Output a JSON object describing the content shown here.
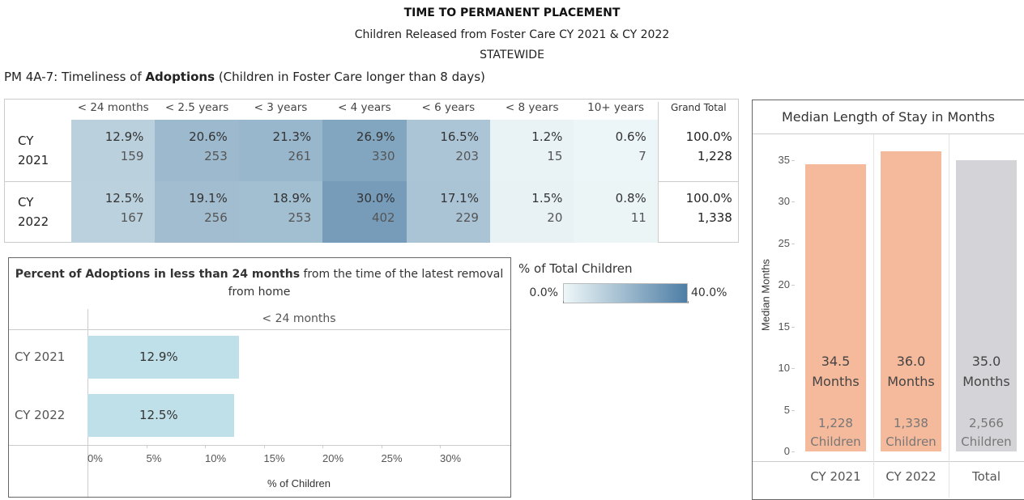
{
  "header": {
    "title": "TIME TO PERMANENT PLACEMENT",
    "subtitle": "Children Released from Foster Care CY 2021 & CY 2022",
    "region": "STATEWIDE"
  },
  "section_title": [
    "PM 4A-7: Timeliness of ",
    "Adoptions",
    " (Children in Foster Care longer than 8 days)"
  ],
  "chart_data": [
    {
      "type": "heatmap",
      "columns": [
        "< 24 months",
        "< 2.5 years",
        "< 3 years",
        "< 4 years",
        "< 6 years",
        "< 8 years",
        "10+ years"
      ],
      "rows": [
        "CY 2021",
        "CY 2022"
      ],
      "values": [
        [
          12.9,
          20.6,
          21.3,
          26.9,
          16.5,
          1.2,
          0.6
        ],
        [
          12.5,
          19.1,
          18.9,
          30.0,
          17.1,
          1.5,
          0.8
        ]
      ],
      "value_labels": [
        [
          "12.9%",
          "20.6%",
          "21.3%",
          "26.9%",
          "16.5%",
          "1.2%",
          "0.6%"
        ],
        [
          "12.5%",
          "19.1%",
          "18.9%",
          "30.0%",
          "17.1%",
          "1.5%",
          "0.8%"
        ]
      ],
      "counts": [
        [
          159,
          253,
          261,
          330,
          203,
          15,
          7
        ],
        [
          167,
          256,
          253,
          402,
          229,
          20,
          11
        ]
      ],
      "total_header": "Grand Total",
      "total_labels": [
        "100.0%",
        "100.0%"
      ],
      "total_counts": [
        "1,228",
        "1,338"
      ],
      "legend": {
        "title": "% of Total Children",
        "lim": [
          0,
          40
        ],
        "ticks": [
          {
            "value": 0,
            "label": "0.0%"
          },
          {
            "value": 40,
            "label": "40.0%"
          }
        ],
        "colors": [
          "#eef7f8",
          "#4e7ea5"
        ]
      }
    },
    {
      "type": "hbar",
      "title": [
        "Percent of Adoptions in less than 24 months",
        " from the time of the latest removal from home"
      ],
      "column_header": "< 24 months",
      "categories": [
        "CY 2021",
        "CY 2022"
      ],
      "values": [
        12.9,
        12.5
      ],
      "value_labels": [
        "12.9%",
        "12.5%"
      ],
      "color": "#bfe0e8",
      "xlim": [
        0,
        36
      ],
      "xticks": [
        {
          "value": 0,
          "label": "0%"
        },
        {
          "value": 5,
          "label": "5%"
        },
        {
          "value": 10,
          "label": "10%"
        },
        {
          "value": 15,
          "label": "15%"
        },
        {
          "value": 20,
          "label": "20%"
        },
        {
          "value": 25,
          "label": "25%"
        },
        {
          "value": 30,
          "label": "30%"
        }
      ],
      "xlabel": "% of Children"
    },
    {
      "type": "bar",
      "title": "Median Length of Stay in Months",
      "ylabel": "Median Months",
      "categories": [
        "CY 2021",
        "CY 2022",
        "Total"
      ],
      "values": [
        34.5,
        36.0,
        35.0
      ],
      "value_labels": [
        "34.5 Months",
        "36.0 Months",
        "35.0 Months"
      ],
      "count_labels": [
        "1,228 Children",
        "1,338 Children",
        "2,566 Children"
      ],
      "colors": [
        "#f5b99b",
        "#f5b99b",
        "#d4d4d8"
      ],
      "ylim": [
        0,
        37.5
      ],
      "yticks": [
        0,
        5,
        10,
        15,
        20,
        25,
        30,
        35
      ]
    }
  ]
}
